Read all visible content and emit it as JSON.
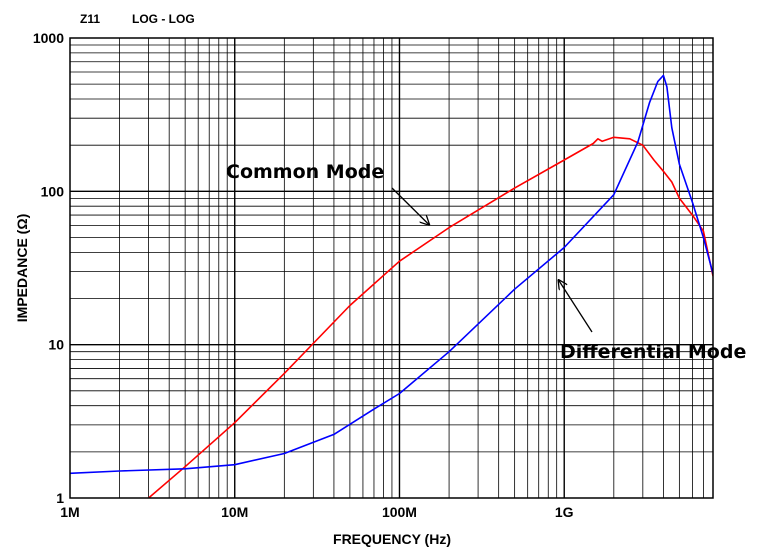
{
  "chart_data": {
    "type": "line",
    "header": {
      "label": "Z11",
      "scale": "LOG  -  LOG"
    },
    "xlabel": "FREQUENCY (Hz)",
    "ylabel": "IMPEDANCE (Ω)",
    "x_scale": "log",
    "y_scale": "log",
    "xlim": [
      1000000,
      8000000000
    ],
    "ylim": [
      1,
      1000
    ],
    "grid": true,
    "x_ticks": [
      {
        "value": 1000000,
        "label": "1M"
      },
      {
        "value": 10000000,
        "label": "10M"
      },
      {
        "value": 100000000,
        "label": "100M"
      },
      {
        "value": 1000000000,
        "label": "1G"
      }
    ],
    "y_ticks": [
      {
        "value": 1,
        "label": "1"
      },
      {
        "value": 10,
        "label": "10"
      },
      {
        "value": 100,
        "label": "100"
      },
      {
        "value": 1000,
        "label": "1000"
      }
    ],
    "series": [
      {
        "name": "Common Mode",
        "color": "#ff0000",
        "x": [
          3000000,
          5000000,
          10000000,
          20000000,
          50000000,
          100000000,
          200000000,
          500000000,
          1000000000,
          1500000000,
          1600000000,
          1700000000,
          2000000000,
          2500000000,
          3000000000,
          3500000000,
          4000000000,
          4500000000,
          5000000000,
          6000000000,
          7000000000,
          8000000000
        ],
        "y": [
          1,
          1.6,
          3.1,
          6.5,
          18,
          35,
          58,
          105,
          160,
          205,
          220,
          212,
          225,
          220,
          200,
          160,
          135,
          115,
          90,
          70,
          55,
          28
        ]
      },
      {
        "name": "Differential Mode",
        "color": "#0000ff",
        "x": [
          1000000,
          2000000,
          5000000,
          10000000,
          20000000,
          40000000,
          70000000,
          100000000,
          200000000,
          500000000,
          1000000000,
          2000000000,
          2800000000,
          3300000000,
          3700000000,
          4000000000,
          4200000000,
          4500000000,
          5000000000,
          6000000000,
          7000000000,
          8000000000
        ],
        "y": [
          1.45,
          1.5,
          1.55,
          1.65,
          1.95,
          2.6,
          3.8,
          4.8,
          9,
          23,
          43,
          95,
          210,
          380,
          520,
          570,
          480,
          260,
          150,
          85,
          50,
          29
        ]
      }
    ],
    "annotations": [
      {
        "text": "Common Mode",
        "series": "Common Mode",
        "x": 160000000,
        "y": 57
      },
      {
        "text": "Differential Mode",
        "series": "Differential Mode",
        "x": 850000000,
        "y": 28
      }
    ]
  }
}
